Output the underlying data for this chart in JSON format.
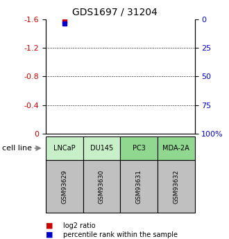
{
  "title": "GDS1697 / 31204",
  "samples": [
    "GSM93629",
    "GSM93630",
    "GSM93631",
    "GSM93632"
  ],
  "cell_lines": [
    "LNCaP",
    "DU145",
    "PC3",
    "MDA-2A"
  ],
  "cell_line_colors": [
    "#c8f0c8",
    "#c8f0c8",
    "#90d890",
    "#90d890"
  ],
  "log2_ratio_value": -1.57,
  "log2_ratio_sample_idx": 0,
  "percentile_rank": 4,
  "percentile_rank_sample_idx": 0,
  "yticks_left": [
    0,
    -0.4,
    -0.8,
    -1.2,
    -1.6
  ],
  "yticks_right": [
    100,
    75,
    50,
    25,
    0
  ],
  "left_axis_color": "#cc0000",
  "right_axis_color": "#0000cc",
  "sample_box_color": "#c0c0c0",
  "legend_red": "#cc0000",
  "legend_blue": "#0000cc",
  "cell_line_label": "cell line"
}
